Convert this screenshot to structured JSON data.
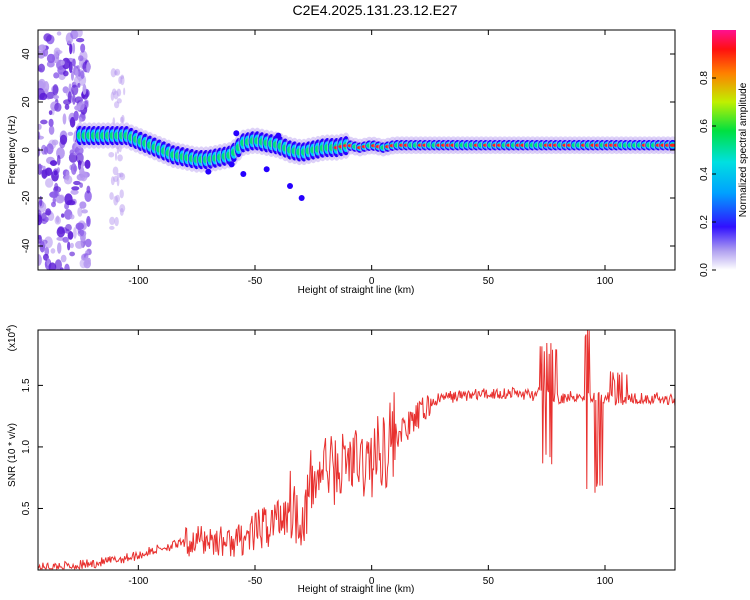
{
  "title": "C2E4.2025.131.23.12.E27",
  "colors": {
    "snr_line": "#e8312f",
    "ridge": [
      "#2600ff",
      "#00c8ff",
      "#00e07a",
      "#ff2020"
    ],
    "noise": [
      "#5a1ad6",
      "#8a5ae8",
      "#b79af0"
    ]
  },
  "chart_data": [
    {
      "type": "heatmap",
      "xlabel": "Height of straight line (km)",
      "ylabel": "Frequency (Hz)",
      "xlim": [
        -143,
        130
      ],
      "ylim": [
        -50,
        50
      ],
      "xticks": [
        -100,
        -50,
        0,
        50,
        100
      ],
      "yticks": [
        -40,
        -20,
        0,
        20,
        40
      ],
      "ridge": {
        "x": [
          -125,
          -115,
          -105,
          -100,
          -95,
          -90,
          -85,
          -80,
          -75,
          -70,
          -65,
          -60,
          -55,
          -50,
          -45,
          -40,
          -35,
          -30,
          -25,
          -20,
          -15,
          -10,
          -5,
          0,
          5,
          10,
          20,
          40,
          60,
          80,
          100,
          120,
          130
        ],
        "y": [
          6,
          6,
          6,
          4,
          2,
          0,
          -2,
          -3,
          -4,
          -4,
          -3,
          -2,
          3,
          4,
          3,
          2,
          0,
          -1,
          0,
          1,
          1,
          2,
          1,
          2,
          1,
          2,
          2,
          2,
          2,
          2,
          2,
          2,
          2
        ]
      },
      "colorbar": {
        "label": "Normalized spectral amplitude",
        "ticks": [
          "0.0",
          "0.2",
          "0.4",
          "0.6",
          "0.8"
        ],
        "range": [
          0,
          1
        ],
        "colormap": "rainbow"
      }
    },
    {
      "type": "line",
      "xlabel": "Height of straight line (km)",
      "ylabel": "SNR (10 * v/v)",
      "scale_label": "(x10",
      "scale_exp": "4",
      "xlim": [
        -143,
        130
      ],
      "ylim": [
        0,
        1.95
      ],
      "xticks": [
        -100,
        -50,
        0,
        50,
        100
      ],
      "yticks": [
        "0.5",
        "1.0",
        "1.5"
      ],
      "series": [
        {
          "x": [
            -143,
            -130,
            -120,
            -110,
            -100,
            -90,
            -80,
            -70,
            -60,
            -50,
            -40,
            -35,
            -30,
            -25,
            -20,
            -15,
            -10,
            -5,
            0,
            5,
            10,
            15,
            20,
            25,
            30,
            40,
            50,
            60,
            70,
            75,
            80,
            90,
            95,
            100,
            105,
            110,
            120,
            130
          ],
          "values": [
            0.02,
            0.03,
            0.05,
            0.08,
            0.12,
            0.18,
            0.22,
            0.25,
            0.22,
            0.3,
            0.42,
            0.55,
            0.4,
            0.7,
            0.85,
            0.8,
            0.9,
            0.85,
            0.88,
            1.0,
            1.1,
            1.15,
            1.25,
            1.35,
            1.4,
            1.42,
            1.43,
            1.44,
            1.42,
            1.45,
            1.4,
            1.42,
            1.4,
            1.4,
            1.38,
            1.4,
            1.4,
            1.38
          ]
        }
      ],
      "spikes": [
        {
          "x": 76,
          "values": [
            1.85,
            0.95
          ]
        },
        {
          "x": 95,
          "values": [
            1.95,
            0.72
          ]
        },
        {
          "x": 106,
          "values": [
            1.62,
            1.12
          ]
        }
      ]
    }
  ]
}
